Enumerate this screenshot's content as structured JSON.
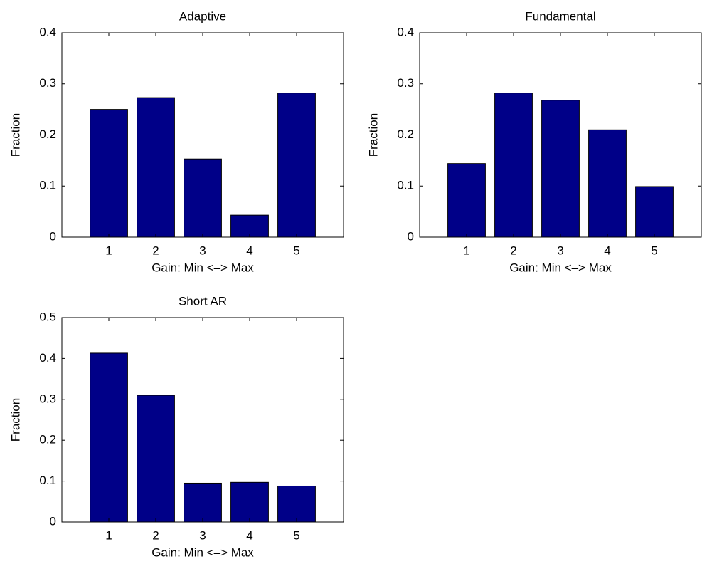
{
  "chart_data": [
    {
      "type": "bar",
      "title": "Adaptive",
      "x_label": "Gain: Min <–> Max",
      "y_label": "Fraction",
      "categories": [
        "1",
        "2",
        "3",
        "4",
        "5"
      ],
      "values": [
        0.25,
        0.273,
        0.153,
        0.043,
        0.282
      ],
      "color": "#000088",
      "ylim": [
        0,
        0.4
      ],
      "yticks": [
        0,
        0.1,
        0.2,
        0.3,
        0.4
      ]
    },
    {
      "type": "bar",
      "title": "Fundamental",
      "x_label": "Gain: Min <–> Max",
      "y_label": "Fraction",
      "categories": [
        "1",
        "2",
        "3",
        "4",
        "5"
      ],
      "values": [
        0.144,
        0.282,
        0.268,
        0.21,
        0.099
      ],
      "color": "#000088",
      "ylim": [
        0,
        0.4
      ],
      "yticks": [
        0,
        0.1,
        0.2,
        0.3,
        0.4
      ]
    },
    {
      "type": "bar",
      "title": "Short AR",
      "x_label": "Gain: Min <–> Max",
      "y_label": "Fraction",
      "categories": [
        "1",
        "2",
        "3",
        "4",
        "5"
      ],
      "values": [
        0.413,
        0.31,
        0.095,
        0.097,
        0.088
      ],
      "color": "#000088",
      "ylim": [
        0,
        0.5
      ],
      "yticks": [
        0,
        0.1,
        0.2,
        0.3,
        0.4,
        0.5
      ]
    }
  ]
}
